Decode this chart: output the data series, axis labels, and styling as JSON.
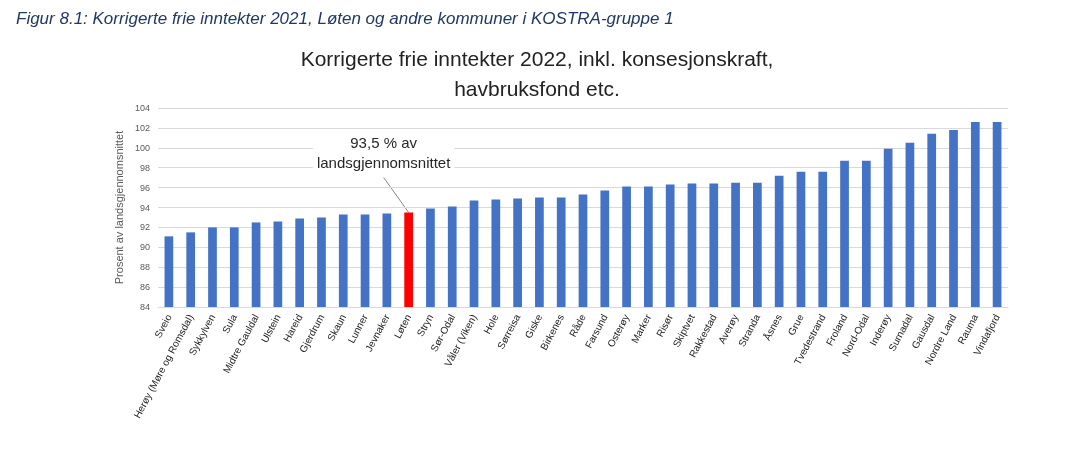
{
  "chart_data": {
    "type": "bar",
    "title": "Korrigerte frie inntekter 2022, inkl. konsesjonskraft,\nhavbruksfond etc.",
    "ylabel": "Prosent av landsgjennomsnittet",
    "categories": [
      "Sveio",
      "Herøy (Møre og Romsdal)",
      "Sykkylven",
      "Sula",
      "Midtre Gauldal",
      "Ulstein",
      "Hareid",
      "Gjerdrum",
      "Skaun",
      "Lunner",
      "Jevnaker",
      "Løten",
      "Stryn",
      "Sør-Odal",
      "Våler (Viken)",
      "Hole",
      "Sørreisa",
      "Giske",
      "Birkenes",
      "Råde",
      "Farsund",
      "Osterøy",
      "Marker",
      "Risør",
      "Skiptvet",
      "Rakkestad",
      "Averøy",
      "Stranda",
      "Åsnes",
      "Grue",
      "Tvedestrand",
      "Froland",
      "Nord-Odal",
      "Inderøy",
      "Surnadal",
      "Gausdal",
      "Nordre Land",
      "Rauma",
      "Vindafjord"
    ],
    "values": [
      91.1,
      91.5,
      92.0,
      92.0,
      92.5,
      92.6,
      92.9,
      93.0,
      93.3,
      93.3,
      93.4,
      93.5,
      93.9,
      94.1,
      94.7,
      94.8,
      94.9,
      95.0,
      95.0,
      95.3,
      95.7,
      96.1,
      96.1,
      96.3,
      96.4,
      96.4,
      96.5,
      96.5,
      97.2,
      97.6,
      97.6,
      98.7,
      98.7,
      99.9,
      100.5,
      101.4,
      101.8,
      102.6,
      102.6
    ],
    "colors": [
      "#4472c4",
      "#4472c4",
      "#4472c4",
      "#4472c4",
      "#4472c4",
      "#4472c4",
      "#4472c4",
      "#4472c4",
      "#4472c4",
      "#4472c4",
      "#4472c4",
      "#ff0000",
      "#4472c4",
      "#4472c4",
      "#4472c4",
      "#4472c4",
      "#4472c4",
      "#4472c4",
      "#4472c4",
      "#4472c4",
      "#4472c4",
      "#4472c4",
      "#4472c4",
      "#4472c4",
      "#4472c4",
      "#4472c4",
      "#4472c4",
      "#4472c4",
      "#4472c4",
      "#4472c4",
      "#4472c4",
      "#4472c4",
      "#4472c4",
      "#4472c4",
      "#4472c4",
      "#4472c4",
      "#4472c4",
      "#4472c4",
      "#4472c4"
    ],
    "ylim": [
      84,
      104
    ],
    "yticks": [
      84,
      86,
      88,
      90,
      92,
      94,
      96,
      98,
      100,
      102,
      104
    ],
    "grid": "y",
    "annotations": [
      "Figur 8.1: Korrigerte frie inntekter 2021, Løten og andre kommuner i KOSTRA-gruppe 1",
      {
        "text": "93,5 % av\nlandsgjennomsnittet",
        "x": "Løten",
        "y": 93.5
      }
    ]
  }
}
